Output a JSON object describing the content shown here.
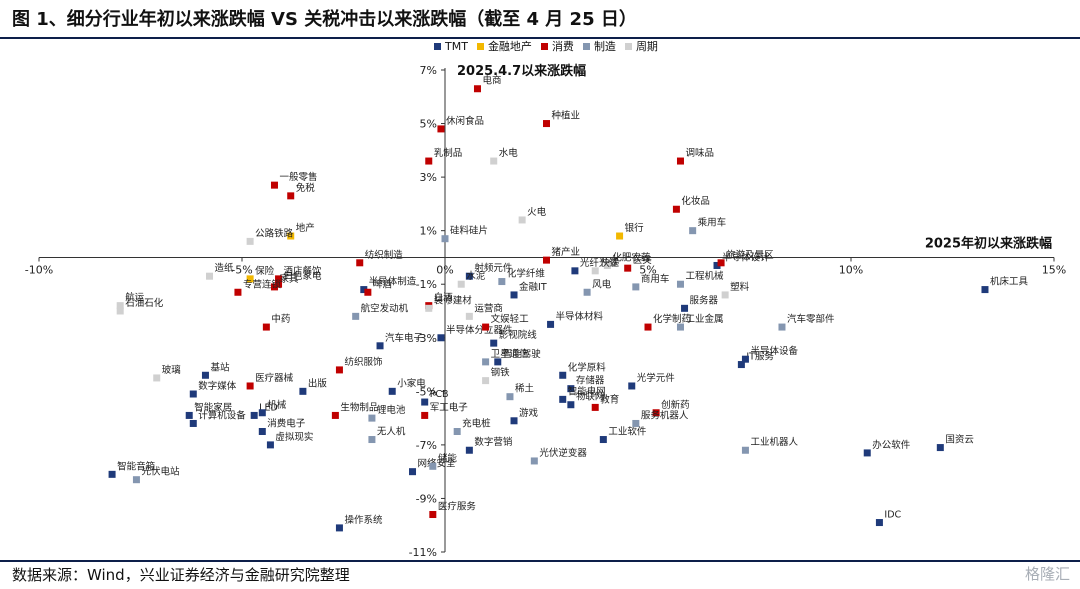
{
  "title": "图 1、细分行业年初以来涨跌幅 VS 关税冲击以来涨跌幅（截至 4 月 25 日）",
  "source": "数据来源：Wind，兴业证券经济与金融研究院整理",
  "watermark": "格隆汇",
  "legend": [
    {
      "name": "TMT",
      "color": "#1f3a7a"
    },
    {
      "name": "金融地产",
      "color": "#f2b800"
    },
    {
      "name": "消费",
      "color": "#c00000"
    },
    {
      "name": "制造",
      "color": "#8496b0"
    },
    {
      "name": "周期",
      "color": "#d0d0d0"
    }
  ],
  "chart_data": {
    "type": "scatter",
    "xlabel": "2025年初以来涨跌幅",
    "ylabel": "2025.4.7以来涨跌幅",
    "xlim": [
      -10,
      15
    ],
    "ylim": [
      -11,
      7
    ],
    "x_ticks": [
      "-10%",
      "-5%",
      "0%",
      "5%",
      "10%",
      "15%"
    ],
    "y_ticks": [
      "7%",
      "5%",
      "3%",
      "1%",
      "-1%",
      "-3%",
      "-5%",
      "-7%",
      "-9%",
      "-11%"
    ],
    "series": [
      {
        "name": "TMT",
        "color": "#1f3a7a",
        "points": [
          {
            "label": "机床工具",
            "x": 13.3,
            "y": -1.2
          },
          {
            "label": "国资云",
            "x": 12.2,
            "y": -7.1
          },
          {
            "label": "办公软件",
            "x": 10.4,
            "y": -7.3
          },
          {
            "label": "IDC",
            "x": 10.7,
            "y": -9.9
          },
          {
            "label": "IT服务",
            "x": 7.3,
            "y": -4.0
          },
          {
            "label": "半导体设备",
            "x": 7.4,
            "y": -3.8
          },
          {
            "label": "半导体设计",
            "x": 6.7,
            "y": -0.3
          },
          {
            "label": "服务器",
            "x": 5.9,
            "y": -1.9
          },
          {
            "label": "光学元件",
            "x": 4.6,
            "y": -4.8
          },
          {
            "label": "工业软件",
            "x": 3.9,
            "y": -6.8
          },
          {
            "label": "物联网",
            "x": 3.1,
            "y": -5.5
          },
          {
            "label": "存储器",
            "x": 3.1,
            "y": -4.9
          },
          {
            "label": "智能电网",
            "x": 2.9,
            "y": -5.3
          },
          {
            "label": "化学原料",
            "x": 2.9,
            "y": -4.4
          },
          {
            "label": "光纤光缆",
            "x": 3.2,
            "y": -0.5
          },
          {
            "label": "半导体材料",
            "x": 2.6,
            "y": -2.5
          },
          {
            "label": "金融IT",
            "x": 1.7,
            "y": -1.4
          },
          {
            "label": "游戏",
            "x": 1.7,
            "y": -6.1
          },
          {
            "label": "影视院线",
            "x": 1.2,
            "y": -3.2
          },
          {
            "label": "智能驾驶",
            "x": 1.3,
            "y": -3.9
          },
          {
            "label": "数字营销",
            "x": 0.6,
            "y": -7.2
          },
          {
            "label": "射频元件",
            "x": 0.6,
            "y": -0.7
          },
          {
            "label": "半导体分立器件",
            "x": -0.1,
            "y": -3.0
          },
          {
            "label": "PCB",
            "x": -0.5,
            "y": -5.4
          },
          {
            "label": "网络安全",
            "x": -0.8,
            "y": -8.0
          },
          {
            "label": "汽车电子",
            "x": -1.6,
            "y": -3.3
          },
          {
            "label": "小家电",
            "x": -1.3,
            "y": -5.0
          },
          {
            "label": "半导体制造",
            "x": -2.0,
            "y": -1.2
          },
          {
            "label": "操作系统",
            "x": -2.6,
            "y": -10.1
          },
          {
            "label": "出版",
            "x": -3.5,
            "y": -5.0
          },
          {
            "label": "虚拟现实",
            "x": -4.3,
            "y": -7.0
          },
          {
            "label": "消费电子",
            "x": -4.5,
            "y": -6.5
          },
          {
            "label": "LED",
            "x": -4.7,
            "y": -5.9
          },
          {
            "label": "数字媒体",
            "x": -6.2,
            "y": -5.1
          },
          {
            "label": "智能家居",
            "x": -6.3,
            "y": -5.9
          },
          {
            "label": "计算机设备",
            "x": -6.2,
            "y": -6.2
          },
          {
            "label": "基站",
            "x": -5.9,
            "y": -4.4
          },
          {
            "label": "智能音箱",
            "x": -8.2,
            "y": -8.1
          },
          {
            "label": "机械",
            "x": -4.5,
            "y": -5.8
          }
        ]
      },
      {
        "name": "金融地产",
        "color": "#f2b800",
        "points": [
          {
            "label": "银行",
            "x": 4.3,
            "y": 0.8
          },
          {
            "label": "地产",
            "x": -3.8,
            "y": 0.8
          },
          {
            "label": "保险",
            "x": -4.8,
            "y": -0.8
          }
        ]
      },
      {
        "name": "消费",
        "color": "#c00000",
        "points": [
          {
            "label": "电商",
            "x": 0.8,
            "y": 6.3
          },
          {
            "label": "种植业",
            "x": 2.5,
            "y": 5.0
          },
          {
            "label": "休闲食品",
            "x": -0.1,
            "y": 4.8
          },
          {
            "label": "乳制品",
            "x": -0.4,
            "y": 3.6
          },
          {
            "label": "调味品",
            "x": 5.8,
            "y": 3.6
          },
          {
            "label": "一般零售",
            "x": -4.2,
            "y": 2.7
          },
          {
            "label": "免税",
            "x": -3.8,
            "y": 2.3
          },
          {
            "label": "化妆品",
            "x": 5.7,
            "y": 1.8
          },
          {
            "label": "猪产业",
            "x": 2.5,
            "y": -0.1
          },
          {
            "label": "旅游及景区",
            "x": 6.8,
            "y": -0.2
          },
          {
            "label": "医美",
            "x": 4.5,
            "y": -0.4
          },
          {
            "label": "纺织制造",
            "x": -2.1,
            "y": -0.2
          },
          {
            "label": "酒店餐饮",
            "x": -4.1,
            "y": -0.8
          },
          {
            "label": "白色家电",
            "x": -4.1,
            "y": -1.0
          },
          {
            "label": "家具",
            "x": -4.2,
            "y": -1.1
          },
          {
            "label": "啤酒",
            "x": -1.9,
            "y": -1.3
          },
          {
            "label": "专营连锁",
            "x": -5.1,
            "y": -1.3
          },
          {
            "label": "中药",
            "x": -4.4,
            "y": -2.6
          },
          {
            "label": "白酒",
            "x": -0.4,
            "y": -1.8
          },
          {
            "label": "文娱轻工",
            "x": 1.0,
            "y": -2.6
          },
          {
            "label": "化学制药",
            "x": 5.0,
            "y": -2.6
          },
          {
            "label": "纺织服饰",
            "x": -2.6,
            "y": -4.2
          },
          {
            "label": "医疗器械",
            "x": -4.8,
            "y": -4.8
          },
          {
            "label": "生物制品",
            "x": -2.7,
            "y": -5.9
          },
          {
            "label": "创新药",
            "x": 5.2,
            "y": -5.8
          },
          {
            "label": "教育",
            "x": 3.7,
            "y": -5.6
          },
          {
            "label": "军工电子",
            "x": -0.5,
            "y": -5.9
          },
          {
            "label": "医疗服务",
            "x": -0.3,
            "y": -9.6
          }
        ]
      },
      {
        "name": "制造",
        "color": "#8496b0",
        "points": [
          {
            "label": "乘用车",
            "x": 6.1,
            "y": 1.0
          },
          {
            "label": "工程机械",
            "x": 5.8,
            "y": -1.0
          },
          {
            "label": "商用车",
            "x": 4.7,
            "y": -1.1
          },
          {
            "label": "风电",
            "x": 3.5,
            "y": -1.3
          },
          {
            "label": "汽车零部件",
            "x": 8.3,
            "y": -2.6
          },
          {
            "label": "工业金属",
            "x": 5.8,
            "y": -2.6
          },
          {
            "label": "工业机器人",
            "x": 7.4,
            "y": -7.2
          },
          {
            "label": "服务机器人",
            "x": 4.7,
            "y": -6.2
          },
          {
            "label": "光伏逆变器",
            "x": 2.2,
            "y": -7.6
          },
          {
            "label": "储能",
            "x": -0.3,
            "y": -7.8
          },
          {
            "label": "无人机",
            "x": -1.8,
            "y": -6.8
          },
          {
            "label": "锂电池",
            "x": -1.8,
            "y": -6.0
          },
          {
            "label": "航空发动机",
            "x": -2.2,
            "y": -2.2
          },
          {
            "label": "充电桩",
            "x": 0.3,
            "y": -6.5
          },
          {
            "label": "卫星通信",
            "x": 1.0,
            "y": -3.9
          },
          {
            "label": "稀土",
            "x": 1.6,
            "y": -5.2
          },
          {
            "label": "硅料硅片",
            "x": 0.0,
            "y": 0.7
          },
          {
            "label": "化学纤维",
            "x": 1.4,
            "y": -0.9
          },
          {
            "label": "光伏电站",
            "x": -7.6,
            "y": -8.3
          }
        ]
      },
      {
        "name": "周期",
        "color": "#d0d0d0",
        "points": [
          {
            "label": "水电",
            "x": 1.2,
            "y": 3.6
          },
          {
            "label": "火电",
            "x": 1.9,
            "y": 1.4
          },
          {
            "label": "公路铁路",
            "x": -4.8,
            "y": 0.6
          },
          {
            "label": "化肥农药",
            "x": 4.0,
            "y": -0.3
          },
          {
            "label": "快递",
            "x": 3.7,
            "y": -0.5
          },
          {
            "label": "塑料",
            "x": 6.9,
            "y": -1.4
          },
          {
            "label": "造纸",
            "x": -5.8,
            "y": -0.7
          },
          {
            "label": "水泥",
            "x": 0.4,
            "y": -1.0
          },
          {
            "label": "装修建材",
            "x": -0.4,
            "y": -1.9
          },
          {
            "label": "航运",
            "x": -8.0,
            "y": -1.8
          },
          {
            "label": "石油石化",
            "x": -8.0,
            "y": -2.0
          },
          {
            "label": "玻璃",
            "x": -7.1,
            "y": -4.5
          },
          {
            "label": "钢铁",
            "x": 1.0,
            "y": -4.6
          },
          {
            "label": "运营商",
            "x": 0.6,
            "y": -2.2
          }
        ]
      }
    ]
  }
}
